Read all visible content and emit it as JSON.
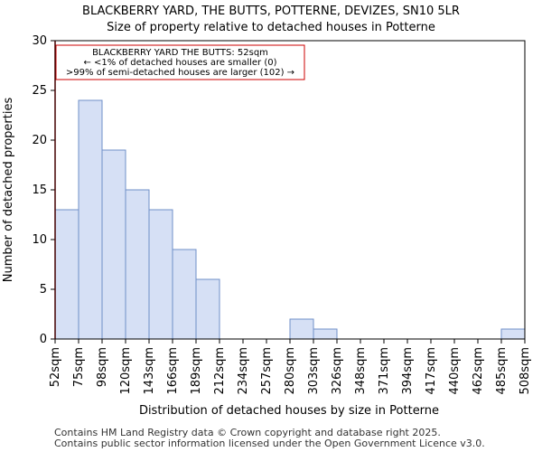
{
  "chart_data": {
    "type": "bar",
    "title": "BLACKBERRY YARD, THE BUTTS, POTTERNE, DEVIZES, SN10 5LR",
    "subtitle": "Size of property relative to detached houses in Potterne",
    "xlabel": "Distribution of detached houses by size in Potterne",
    "ylabel": "Number of detached properties",
    "ylim": [
      0,
      30
    ],
    "yticks": [
      0,
      5,
      10,
      15,
      20,
      25,
      30
    ],
    "bin_edges": [
      "52sqm",
      "75sqm",
      "98sqm",
      "120sqm",
      "143sqm",
      "166sqm",
      "189sqm",
      "212sqm",
      "234sqm",
      "257sqm",
      "280sqm",
      "303sqm",
      "326sqm",
      "348sqm",
      "371sqm",
      "394sqm",
      "417sqm",
      "440sqm",
      "462sqm",
      "485sqm",
      "508sqm"
    ],
    "values": [
      13,
      24,
      19,
      15,
      13,
      9,
      6,
      0,
      0,
      0,
      2,
      1,
      0,
      0,
      0,
      0,
      0,
      0,
      0,
      1
    ],
    "bar_color": "#d6e0f5",
    "bar_edge_color": "#6f8fc8",
    "marker": {
      "x": "52sqm",
      "color": "#cc0000"
    },
    "annotation": {
      "lines": [
        "BLACKBERRY YARD THE BUTTS: 52sqm",
        "← <1% of detached houses are smaller (0)",
        ">99% of semi-detached houses are larger (102) →"
      ],
      "border_color": "#cc0000"
    },
    "grid": false
  },
  "footer": {
    "line1": "Contains HM Land Registry data © Crown copyright and database right 2025.",
    "line2": "Contains public sector information licensed under the Open Government Licence v3.0."
  }
}
